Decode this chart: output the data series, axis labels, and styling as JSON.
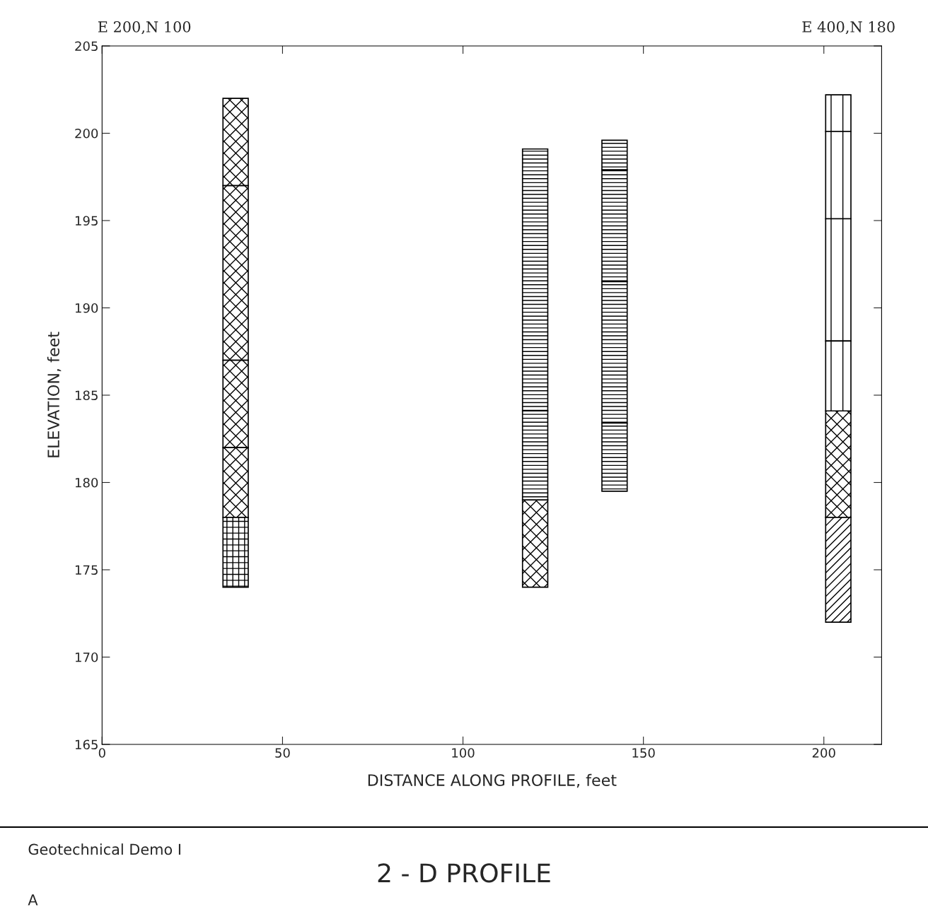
{
  "chart_data": {
    "type": "bar",
    "title": "2 - D PROFILE",
    "xlabel": "DISTANCE ALONG PROFILE, feet",
    "ylabel": "ELEVATION, feet",
    "annotations": [
      "E 200,N 100",
      "E 400,N 180",
      "Geotechnical Demo I",
      "A"
    ],
    "series": [
      {
        "color": "#000000",
        "x": [
          37,
          120,
          204
        ],
        "base": [
          197,
          174,
          178
        ],
        "values": [
          5,
          5,
          6.1
        ]
      },
      {
        "color": "#000000",
        "x": [
          37
        ],
        "base": [
          187
        ],
        "values": [
          10
        ]
      },
      {
        "color": "#000000",
        "x": [
          37
        ],
        "base": [
          182
        ],
        "values": [
          5
        ]
      },
      {
        "color": "#000000",
        "x": [
          37
        ],
        "base": [
          178
        ],
        "values": [
          4
        ]
      },
      {
        "color": "#000000",
        "x": [
          120,
          142
        ],
        "base": [
          184.1,
          197.9
        ],
        "values": [
          15,
          1.7
        ]
      },
      {
        "color": "#000000",
        "x": [
          120,
          142
        ],
        "base": [
          179,
          191.5
        ],
        "values": [
          5.1,
          6.4
        ]
      },
      {
        "color": "#000000",
        "x": [
          142
        ],
        "base": [
          183.4
        ],
        "values": [
          8.1
        ]
      },
      {
        "color": "#000000",
        "x": [
          142
        ],
        "base": [
          179.5
        ],
        "values": [
          3.9
        ]
      },
      {
        "color": "#000000",
        "x": [
          37
        ],
        "base": [
          174
        ],
        "values": [
          4
        ]
      },
      {
        "color": "#000000",
        "x": [
          204
        ],
        "base": [
          200.1
        ],
        "values": [
          2.1
        ]
      },
      {
        "color": "#000000",
        "x": [
          204
        ],
        "base": [
          195.1
        ],
        "values": [
          5
        ]
      },
      {
        "color": "#000000",
        "x": [
          204
        ],
        "base": [
          188.1
        ],
        "values": [
          7
        ]
      },
      {
        "color": "#000000",
        "x": [
          204
        ],
        "base": [
          184.1
        ],
        "values": [
          4
        ]
      },
      {
        "color": "#000000",
        "x": [
          204
        ],
        "base": [
          172
        ],
        "values": [
          6
        ]
      }
    ],
    "xlim": [
      0,
      216
    ],
    "ylim": [
      165,
      205
    ],
    "xticks": [
      0,
      50,
      100,
      150,
      200
    ],
    "yticks": [
      165,
      170,
      175,
      180,
      185,
      190,
      195,
      200,
      205
    ],
    "grid": false,
    "legend": false
  }
}
